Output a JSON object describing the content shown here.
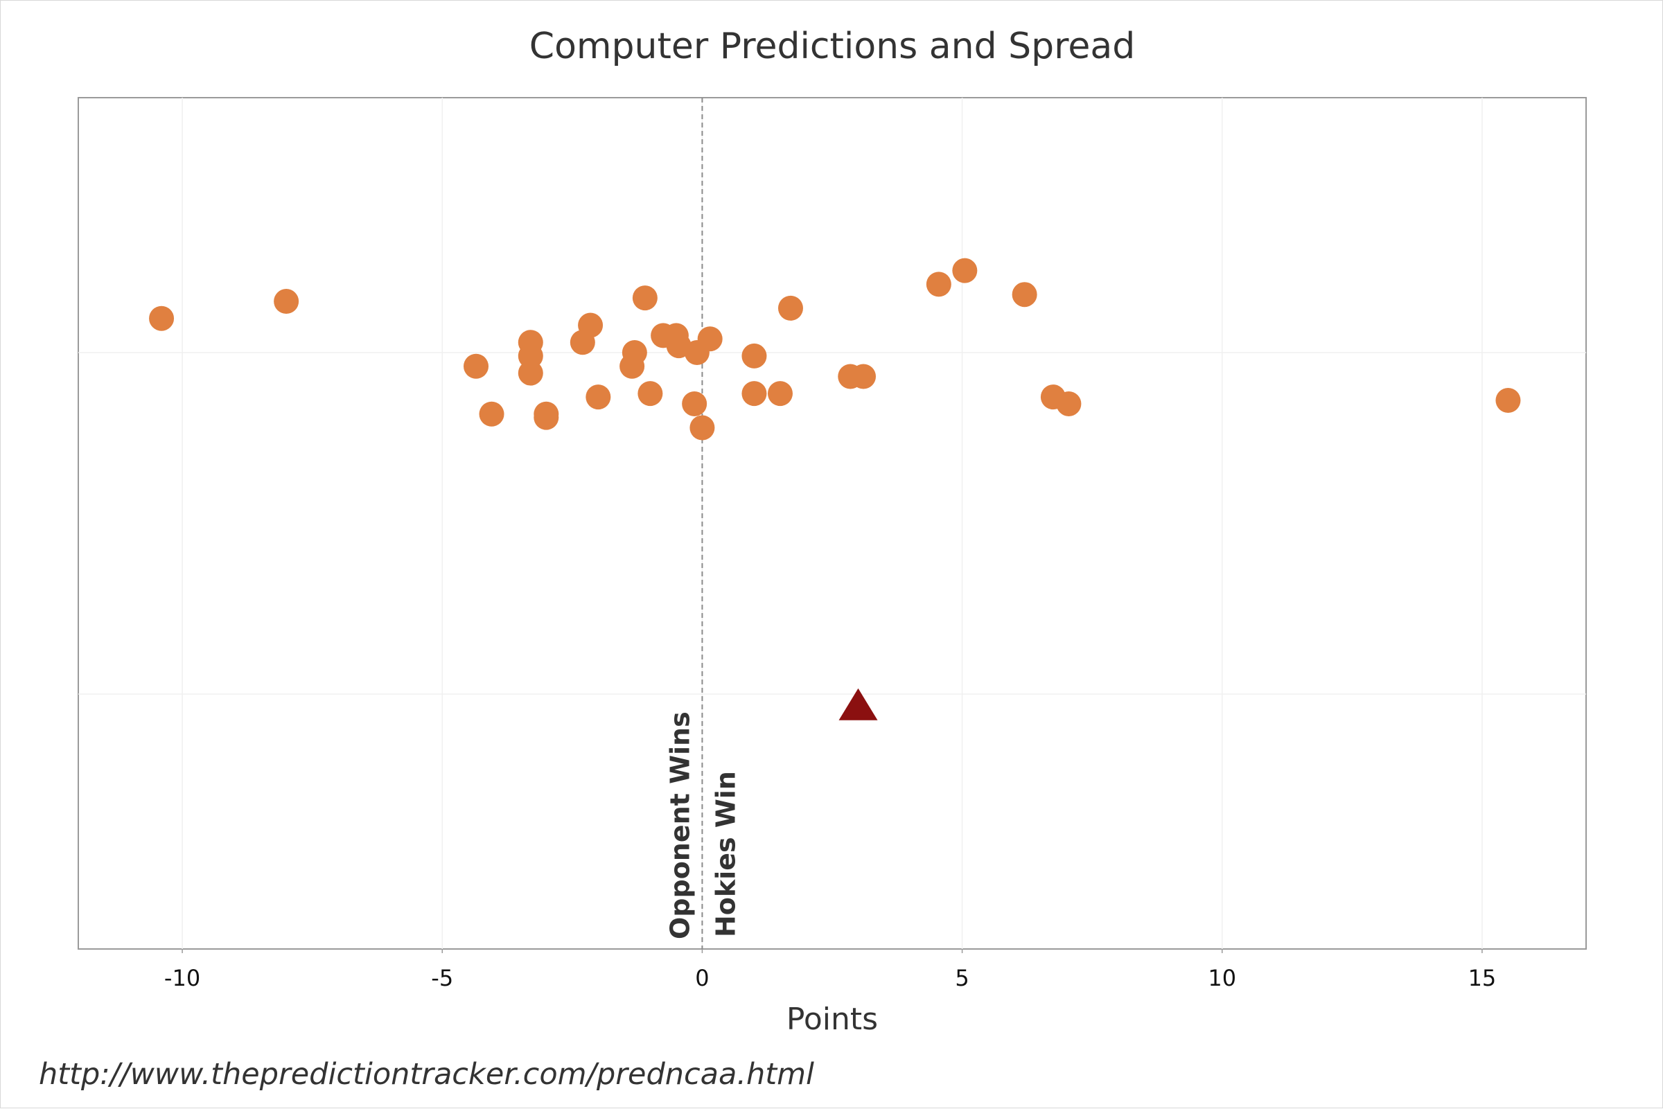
{
  "chart": {
    "title": "Computer Predictions and Spread",
    "source": "http://www.thepredictiontracker.com/predncaa.html"
  },
  "chart_data": {
    "type": "scatter",
    "title": "Computer Predictions and Spread",
    "xlabel": "Points",
    "ylabel": "",
    "xlim": [
      -12,
      17
    ],
    "xticks": [
      -10,
      -5,
      0,
      5,
      10,
      15
    ],
    "xtick_labels": [
      "-10",
      "-5",
      "0",
      "5",
      "10",
      "15"
    ],
    "grid": true,
    "divider": {
      "x": 0,
      "left_label": "Opponent Wins",
      "right_label": "Hokies Win"
    },
    "series": [
      {
        "marker": "circle",
        "color": "#e08040",
        "points": [
          {
            "x": -10.4,
            "y": 0.1
          },
          {
            "x": -8.0,
            "y": 0.15
          },
          {
            "x": -4.35,
            "y": -0.04
          },
          {
            "x": -4.05,
            "y": -0.18
          },
          {
            "x": -3.3,
            "y": 0.03
          },
          {
            "x": -3.3,
            "y": -0.01
          },
          {
            "x": -3.3,
            "y": -0.06
          },
          {
            "x": -3.0,
            "y": -0.18
          },
          {
            "x": -3.0,
            "y": -0.19
          },
          {
            "x": -2.3,
            "y": 0.03
          },
          {
            "x": -2.15,
            "y": 0.08
          },
          {
            "x": -2.0,
            "y": -0.13
          },
          {
            "x": -1.35,
            "y": -0.04
          },
          {
            "x": -1.3,
            "y": 0.0
          },
          {
            "x": -1.1,
            "y": 0.16
          },
          {
            "x": -1.0,
            "y": -0.12
          },
          {
            "x": -0.75,
            "y": 0.05
          },
          {
            "x": -0.5,
            "y": 0.05
          },
          {
            "x": -0.45,
            "y": 0.02
          },
          {
            "x": -0.15,
            "y": -0.15
          },
          {
            "x": -0.1,
            "y": 0.0
          },
          {
            "x": 0.0,
            "y": -0.22
          },
          {
            "x": 0.15,
            "y": 0.04
          },
          {
            "x": 1.0,
            "y": -0.01
          },
          {
            "x": 1.0,
            "y": -0.12
          },
          {
            "x": 1.5,
            "y": -0.12
          },
          {
            "x": 1.7,
            "y": 0.13
          },
          {
            "x": 2.85,
            "y": -0.07
          },
          {
            "x": 3.1,
            "y": -0.07
          },
          {
            "x": 4.55,
            "y": 0.2
          },
          {
            "x": 5.05,
            "y": 0.24
          },
          {
            "x": 6.2,
            "y": 0.17
          },
          {
            "x": 6.75,
            "y": -0.13
          },
          {
            "x": 7.05,
            "y": -0.15
          },
          {
            "x": 15.5,
            "y": -0.14
          }
        ]
      },
      {
        "marker": "triangle",
        "color": "#8b1010",
        "points": [
          {
            "x": 3.0,
            "y": -1.03
          }
        ]
      }
    ]
  }
}
